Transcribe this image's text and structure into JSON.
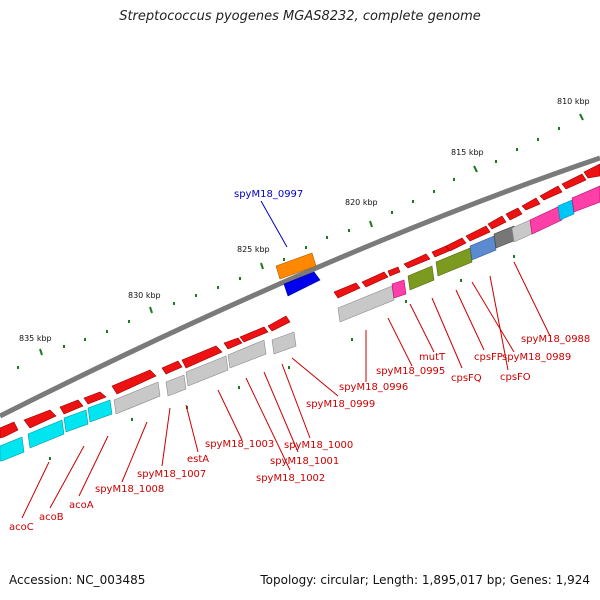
{
  "title": "Streptococcus pyogenes MGAS8232, complete genome",
  "footer": {
    "accession": "Accession: NC_003485",
    "summary": "Topology: circular; Length: 1,895,017 bp; Genes: 1,924"
  },
  "colors": {
    "backbone": "#7a7a7a",
    "tick": "#1e7a1e",
    "outer_gene": "#ee1111",
    "label": "#cc0000",
    "selected_label": "#0000cc",
    "selected_top": "#ff8800",
    "selected_bottom": "#0000ee"
  },
  "scale_labels": [
    "835 kbp",
    "830 kbp",
    "825 kbp",
    "820 kbp",
    "815 kbp",
    "810 kbp"
  ],
  "selected_label": "spyM18_0997",
  "gene_labels": [
    "acoC",
    "acoB",
    "acoA",
    "spyM18_1008",
    "spyM18_1007",
    "estA",
    "spyM18_1003",
    "spyM18_1002",
    "spyM18_1001",
    "spyM18_1000",
    "spyM18_0999",
    "spyM18_0996",
    "spyM18_0995",
    "mutT",
    "cpsFQ",
    "cpsFP",
    "spyM18_0989",
    "cpsFO",
    "spyM18_0988"
  ]
}
